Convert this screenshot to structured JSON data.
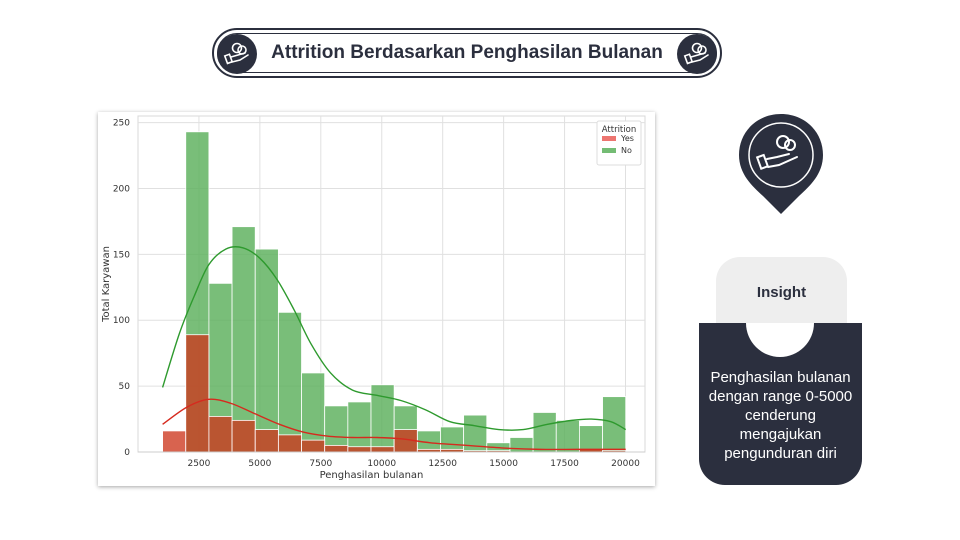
{
  "header": {
    "title": "Attrition Berdasarkan Penghasilan Bulanan"
  },
  "insight": {
    "label": "Insight",
    "text": "Penghasilan bulanan dengan range 0-5000 cenderung mengajukan pengunduran diri"
  },
  "icons": {
    "badge": "money-hand-icon",
    "pin": "map-pin-icon"
  },
  "colors": {
    "dark": "#2b2f3e",
    "yes": "#e8534c",
    "no": "#5cb85c"
  },
  "chart_data": {
    "type": "bar",
    "subtype": "histogram-with-kde",
    "xlabel": "Penghasilan bulanan",
    "ylabel": "Total Karyawan",
    "xlim": [
      0,
      20800
    ],
    "ylim": [
      0,
      255
    ],
    "xticks": [
      2500,
      5000,
      7500,
      10000,
      12500,
      15000,
      17500,
      20000
    ],
    "yticks": [
      0,
      50,
      100,
      150,
      200,
      250
    ],
    "grid": true,
    "legend": {
      "title": "Attrition",
      "position": "top-right",
      "entries": [
        "Yes",
        "No"
      ]
    },
    "bin_edges": [
      1009,
      1959,
      2909,
      3859,
      4809,
      5759,
      6709,
      7659,
      8609,
      9559,
      10509,
      11459,
      12409,
      13359,
      14309,
      15259,
      16209,
      17159,
      18109,
      19059,
      20009
    ],
    "series": [
      {
        "name": "Yes",
        "color": "#e8534c",
        "values": [
          16,
          89,
          27,
          24,
          17,
          13,
          9,
          5,
          4,
          4,
          17,
          2,
          2,
          1,
          1,
          0,
          0,
          0,
          2,
          1
        ],
        "kde_x": [
          1009,
          2000,
          2900,
          3800,
          4800,
          5800,
          6800,
          7800,
          8800,
          9800,
          10800,
          12000,
          13500,
          15000,
          16500,
          18000,
          19200,
          20009
        ],
        "kde_y": [
          21,
          34,
          40,
          37,
          29,
          21,
          15,
          12,
          11,
          11,
          10,
          7,
          5,
          3,
          2,
          2,
          2,
          2
        ]
      },
      {
        "name": "No",
        "color": "#5cb85c",
        "values": [
          0,
          243,
          128,
          171,
          154,
          106,
          60,
          35,
          38,
          51,
          35,
          16,
          19,
          28,
          7,
          11,
          30,
          24,
          20,
          42
        ],
        "kde_x": [
          1009,
          1700,
          2300,
          2900,
          3600,
          4300,
          5000,
          5700,
          6400,
          7100,
          7900,
          8800,
          9800,
          10800,
          11800,
          12800,
          13800,
          14800,
          15800,
          16800,
          17800,
          18600,
          19400,
          20009
        ],
        "kde_y": [
          49,
          90,
          118,
          142,
          154,
          155,
          147,
          131,
          108,
          82,
          60,
          47,
          43,
          39,
          32,
          23,
          20,
          17,
          17,
          21,
          24,
          25,
          23,
          17
        ]
      }
    ]
  }
}
